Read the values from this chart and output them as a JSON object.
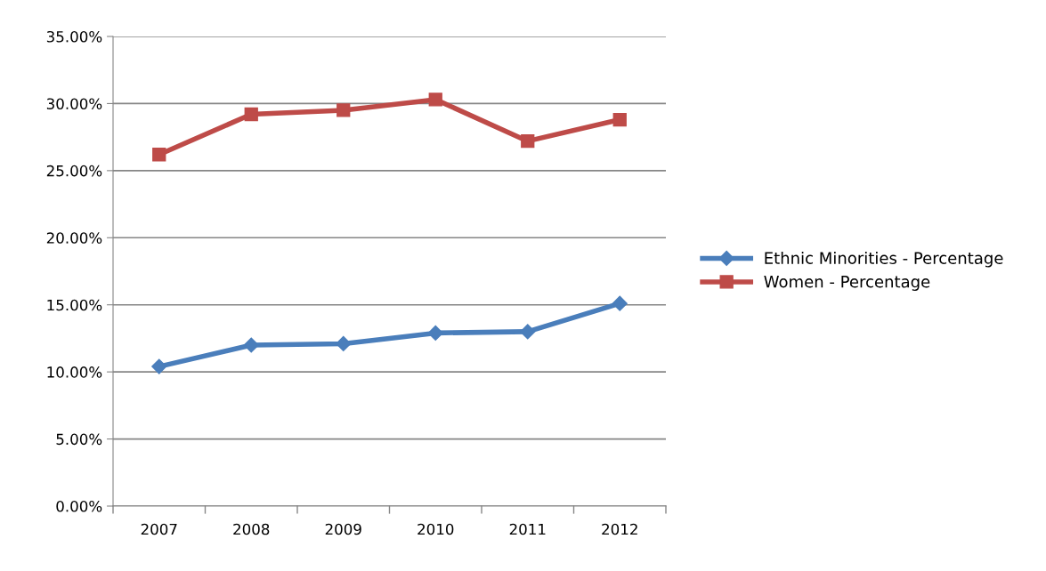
{
  "chart_data": {
    "type": "line",
    "categories": [
      "2007",
      "2008",
      "2009",
      "2010",
      "2011",
      "2012"
    ],
    "series": [
      {
        "name": "Ethnic Minorities - Percentage",
        "color": "#4a7ebb",
        "marker": "diamond",
        "values": [
          10.4,
          12.0,
          12.1,
          12.9,
          13.0,
          15.1
        ]
      },
      {
        "name": "Women - Percentage",
        "color": "#be4b48",
        "marker": "square",
        "values": [
          26.2,
          29.2,
          29.5,
          30.3,
          27.2,
          28.8
        ]
      }
    ],
    "ylim": [
      0,
      35
    ],
    "yticks": [
      {
        "value": 0,
        "label": "0.00%"
      },
      {
        "value": 5,
        "label": "5.00%"
      },
      {
        "value": 10,
        "label": "10.00%"
      },
      {
        "value": 15,
        "label": "15.00%"
      },
      {
        "value": 20,
        "label": "20.00%"
      },
      {
        "value": 25,
        "label": "25.00%"
      },
      {
        "value": 30,
        "label": "30.00%"
      },
      {
        "value": 35,
        "label": "35.00%"
      }
    ],
    "grid": "y",
    "legend": "right",
    "line_style": "solid"
  }
}
